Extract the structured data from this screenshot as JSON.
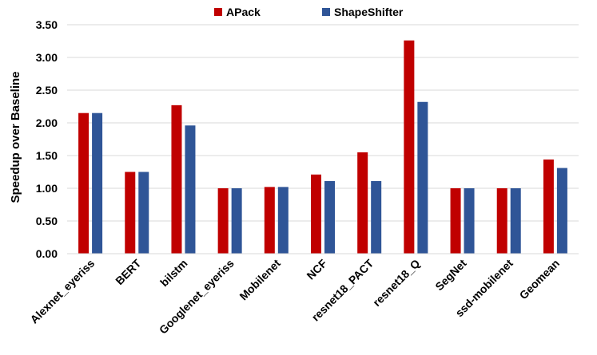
{
  "chart_data": {
    "type": "bar",
    "title": "",
    "xlabel": "",
    "ylabel": "Speedup over Baseline",
    "ylim": [
      0,
      3.5
    ],
    "yticks": [
      "0.00",
      "0.50",
      "1.00",
      "1.50",
      "2.00",
      "2.50",
      "3.00",
      "3.50"
    ],
    "grid": true,
    "legend_position": "top-center",
    "categories": [
      "Alexnet_eyeriss",
      "BERT",
      "bilstm",
      "Googlenet_eyeriss",
      "Mobilenet",
      "NCF",
      "resnet18_PACT",
      "resnet18_Q",
      "SegNet",
      "ssd-mobilenet",
      "Geomean"
    ],
    "series": [
      {
        "name": "APack",
        "color": "#c00000",
        "values": [
          2.15,
          1.25,
          2.27,
          1.0,
          1.02,
          1.21,
          1.55,
          3.26,
          1.0,
          1.0,
          1.44
        ]
      },
      {
        "name": "ShapeShifter",
        "color": "#2f5597",
        "values": [
          2.15,
          1.25,
          1.96,
          1.0,
          1.02,
          1.11,
          1.11,
          2.32,
          1.0,
          1.0,
          1.31
        ]
      }
    ]
  }
}
